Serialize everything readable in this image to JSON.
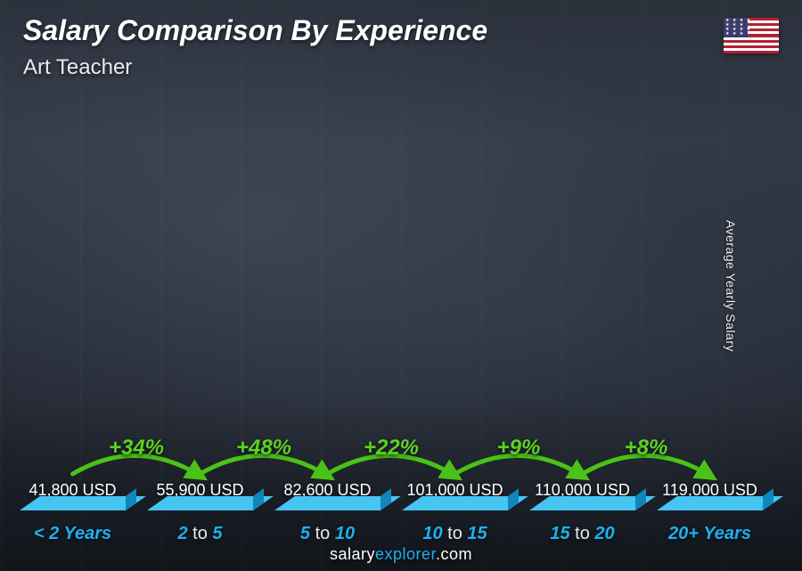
{
  "title": "Salary Comparison By Experience",
  "title_fontsize": 32,
  "subtitle": "Art Teacher",
  "subtitle_fontsize": 24,
  "y_axis_label": "Average Yearly Salary",
  "source_prefix": "salary",
  "source_highlight": "explorer",
  "source_suffix": ".com",
  "chart": {
    "type": "bar",
    "max_value": 130000,
    "bar_front_color": "#19aee9",
    "bar_top_color": "#46c4f2",
    "bar_side_color": "#0f87bb",
    "value_suffix": " USD",
    "value_fontsize": 18,
    "category_color": "#1bb1f0",
    "category_fontsize": 20,
    "bars": [
      {
        "value": 41800,
        "value_label": "41,800 USD",
        "cat_pre": "< 2",
        "cat_post": "Years"
      },
      {
        "value": 55900,
        "value_label": "55,900 USD",
        "cat_pre": "2",
        "cat_mid": "to",
        "cat_post": "5"
      },
      {
        "value": 82600,
        "value_label": "82,600 USD",
        "cat_pre": "5",
        "cat_mid": "to",
        "cat_post": "10"
      },
      {
        "value": 101000,
        "value_label": "101,000 USD",
        "cat_pre": "10",
        "cat_mid": "to",
        "cat_post": "15"
      },
      {
        "value": 110000,
        "value_label": "110,000 USD",
        "cat_pre": "15",
        "cat_mid": "to",
        "cat_post": "20"
      },
      {
        "value": 119000,
        "value_label": "119,000 USD",
        "cat_pre": "20+",
        "cat_post": "Years"
      }
    ],
    "increases": [
      {
        "label": "+34%"
      },
      {
        "label": "+48%"
      },
      {
        "label": "+22%"
      },
      {
        "label": "+9%"
      },
      {
        "label": "+8%"
      }
    ],
    "increase_color": "#5bd41e",
    "increase_stroke": "#4ac217",
    "increase_fontsize": 24
  },
  "flag": {
    "stripe_red": "#b22234",
    "stripe_white": "#ffffff",
    "canton": "#3c3b6e"
  },
  "background": {
    "base_dark": "#1c2029",
    "base_mid": "#2a303c",
    "base_light": "#3a4250"
  }
}
